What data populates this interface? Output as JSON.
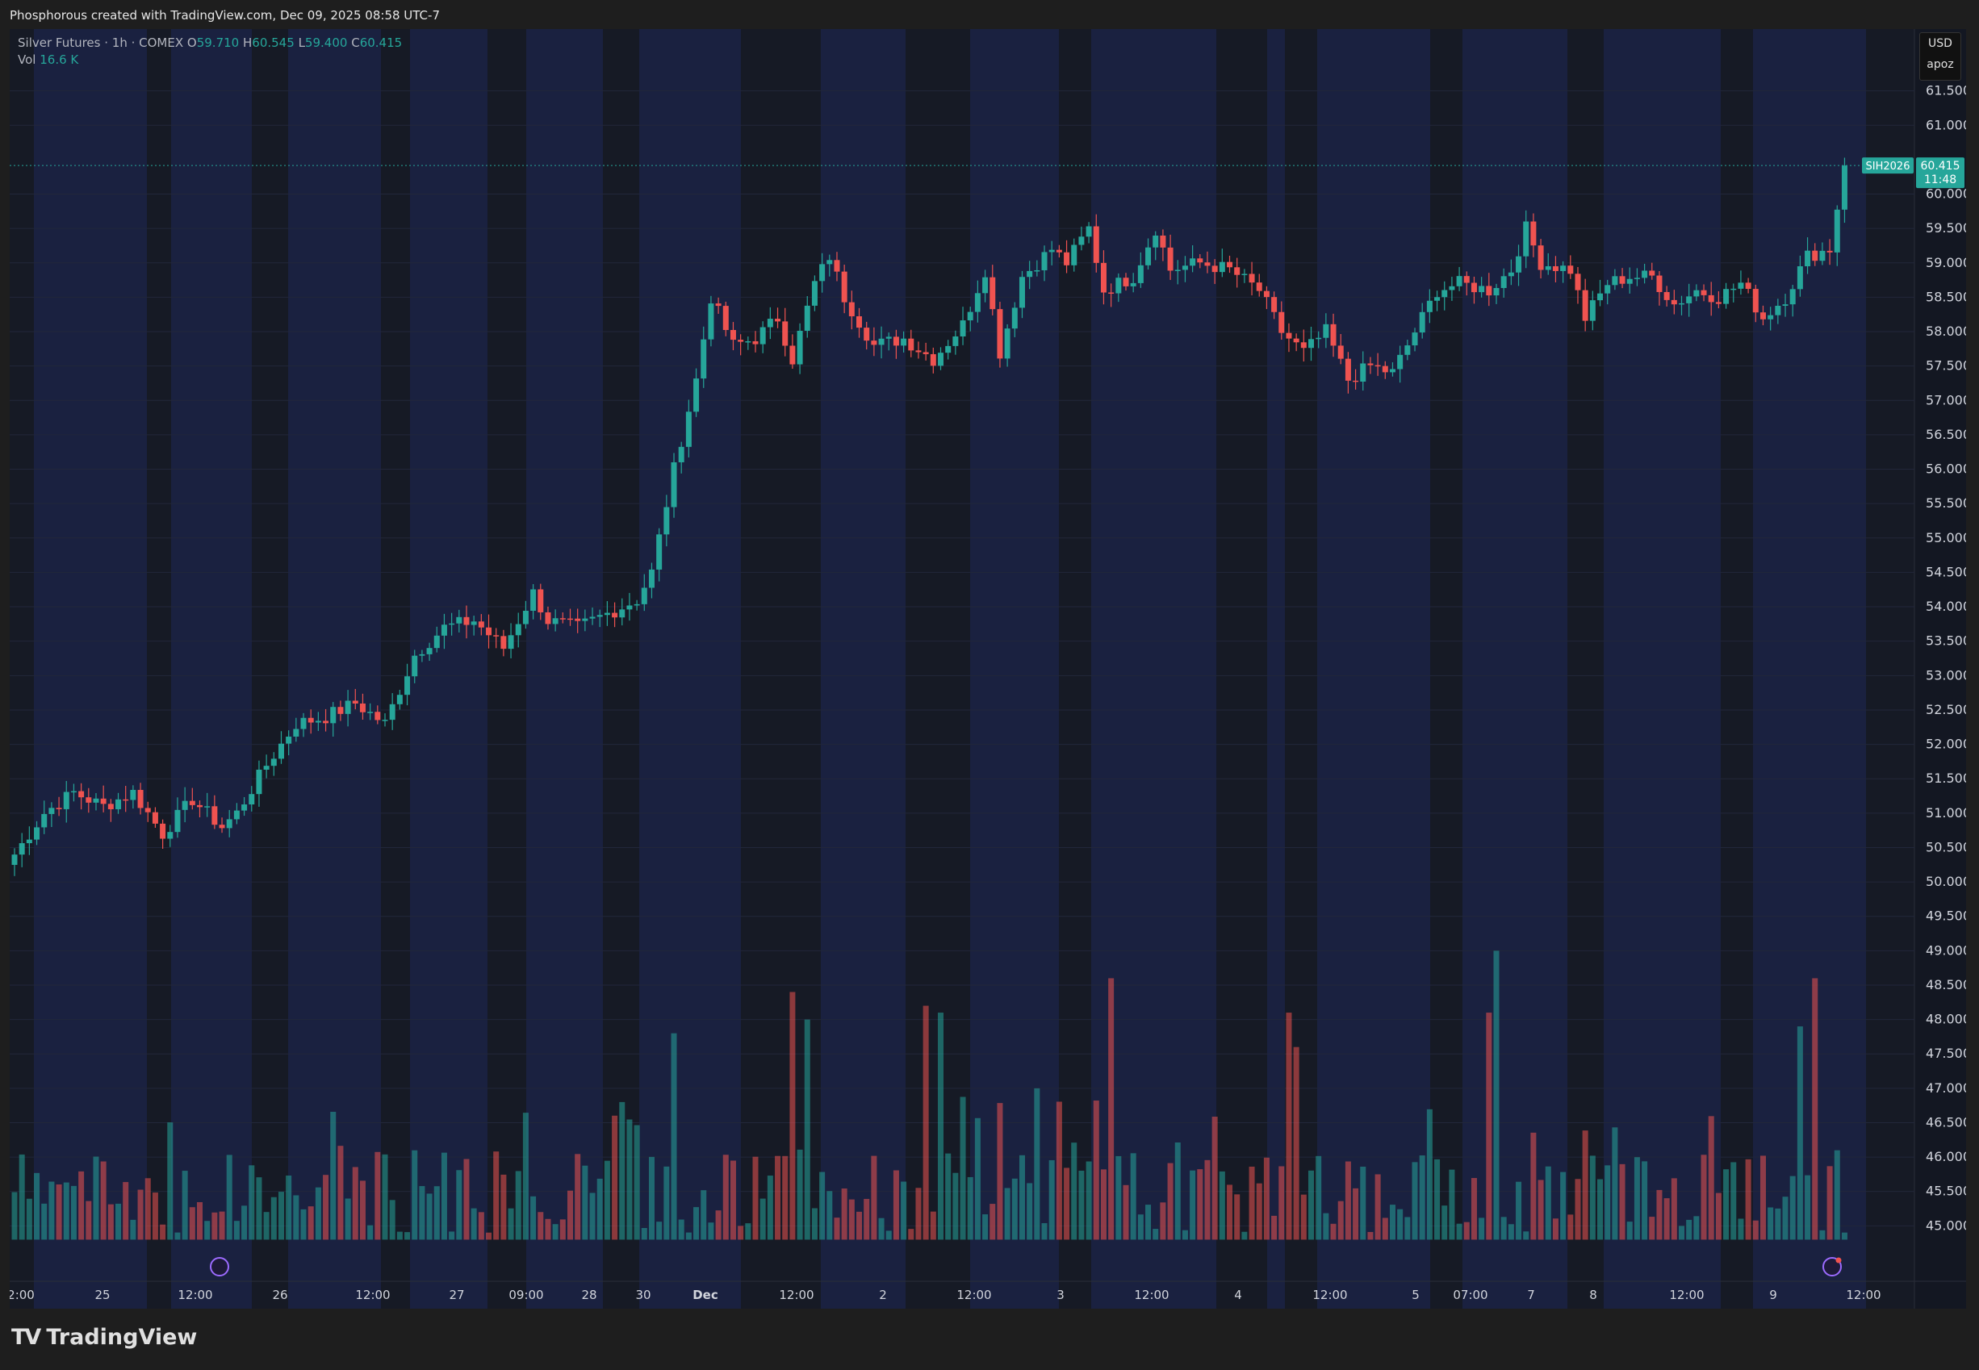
{
  "header": {
    "text": "Phosphorous created with TradingView.com, Dec 09, 2025 08:58 UTC-7"
  },
  "legend": {
    "symbol": "Silver Futures · 1h · COMEX",
    "o_label": "O",
    "o": "59.710",
    "h_label": "H",
    "h": "60.545",
    "l_label": "L",
    "l": "59.400",
    "c_label": "C",
    "c": "60.415",
    "vol_label": "Vol",
    "vol": "16.6 K"
  },
  "price_scale": {
    "currency": "USD",
    "unit": "apoz"
  },
  "last_price": {
    "ticker": "SIH2026",
    "price": "60.415",
    "countdown": "11:48"
  },
  "footer": {
    "brand": "TradingView"
  },
  "colors": {
    "up": "#26a69a",
    "down": "#ef5350",
    "session": "#1a2140",
    "offsession": "#161a25"
  },
  "chart_data": {
    "type": "candlestick",
    "title": "Silver Futures · 1h · COMEX",
    "ylim": [
      44.5,
      62.0
    ],
    "y_ticks": [
      "61.500",
      "61.000",
      "60.000",
      "59.500",
      "59.000",
      "58.500",
      "58.000",
      "57.500",
      "57.000",
      "56.500",
      "56.000",
      "55.500",
      "55.000",
      "54.500",
      "54.000",
      "53.500",
      "53.000",
      "52.500",
      "52.000",
      "51.500",
      "51.000",
      "50.500",
      "50.000",
      "49.500",
      "49.000",
      "48.500",
      "48.000",
      "47.500",
      "47.000",
      "46.500",
      "46.000",
      "45.500",
      "45.000"
    ],
    "x_ticks": [
      "2:00",
      "25",
      "12:00",
      "26",
      "12:00",
      "27",
      "09:00",
      "28",
      "30",
      "Dec",
      "12:00",
      "2",
      "12:00",
      "3",
      "12:00",
      "4",
      "12:00",
      "5",
      "07:00",
      "7",
      "8",
      "12:00",
      "9",
      "12:00"
    ],
    "close_path": [
      [
        0,
        50.4
      ],
      [
        4,
        51.0
      ],
      [
        8,
        51.3
      ],
      [
        12,
        51.1
      ],
      [
        16,
        51.3
      ],
      [
        20,
        50.7
      ],
      [
        24,
        51.2
      ],
      [
        28,
        50.8
      ],
      [
        30,
        51.0
      ],
      [
        34,
        51.7
      ],
      [
        38,
        52.3
      ],
      [
        42,
        52.4
      ],
      [
        46,
        52.6
      ],
      [
        50,
        52.3
      ],
      [
        54,
        53.3
      ],
      [
        58,
        53.7
      ],
      [
        62,
        53.8
      ],
      [
        66,
        53.4
      ],
      [
        70,
        54.2
      ],
      [
        72,
        53.8
      ],
      [
        76,
        53.7
      ],
      [
        80,
        53.9
      ],
      [
        84,
        54.1
      ],
      [
        86,
        54.5
      ],
      [
        89,
        56.0
      ],
      [
        92,
        57.3
      ],
      [
        94,
        58.5
      ],
      [
        97,
        57.8
      ],
      [
        100,
        57.9
      ],
      [
        103,
        58.2
      ],
      [
        105,
        57.6
      ],
      [
        108,
        58.7
      ],
      [
        110,
        59.1
      ],
      [
        112,
        58.5
      ],
      [
        116,
        57.8
      ],
      [
        120,
        57.9
      ],
      [
        124,
        57.6
      ],
      [
        128,
        58.1
      ],
      [
        131,
        58.9
      ],
      [
        133,
        57.7
      ],
      [
        136,
        58.8
      ],
      [
        140,
        59.2
      ],
      [
        142,
        59.0
      ],
      [
        145,
        59.5
      ],
      [
        147,
        58.6
      ],
      [
        151,
        58.8
      ],
      [
        154,
        59.5
      ],
      [
        156,
        58.9
      ],
      [
        160,
        59.0
      ],
      [
        164,
        58.9
      ],
      [
        168,
        58.6
      ],
      [
        171,
        58.0
      ],
      [
        174,
        57.7
      ],
      [
        177,
        58.0
      ],
      [
        180,
        57.3
      ],
      [
        183,
        57.5
      ],
      [
        186,
        57.4
      ],
      [
        189,
        58.0
      ],
      [
        192,
        58.6
      ],
      [
        195,
        58.7
      ],
      [
        199,
        58.6
      ],
      [
        202,
        58.9
      ],
      [
        204,
        59.5
      ],
      [
        206,
        59.0
      ],
      [
        210,
        58.9
      ],
      [
        212,
        58.2
      ],
      [
        215,
        58.7
      ],
      [
        218,
        58.8
      ],
      [
        221,
        58.8
      ],
      [
        224,
        58.4
      ],
      [
        227,
        58.6
      ],
      [
        230,
        58.5
      ],
      [
        233,
        58.7
      ],
      [
        236,
        58.2
      ],
      [
        239,
        58.5
      ],
      [
        242,
        59.1
      ],
      [
        245,
        59.2
      ],
      [
        247,
        60.415
      ]
    ],
    "volume_spikes": [
      [
        82,
        46.8
      ],
      [
        89,
        47.8
      ],
      [
        105,
        48.4
      ],
      [
        107,
        48.0
      ],
      [
        123,
        48.2
      ],
      [
        125,
        48.1
      ],
      [
        138,
        47.0
      ],
      [
        148,
        48.6
      ],
      [
        172,
        48.1
      ],
      [
        173,
        47.6
      ],
      [
        199,
        48.1
      ],
      [
        200,
        49.0
      ],
      [
        241,
        47.9
      ],
      [
        243,
        48.6
      ]
    ]
  }
}
